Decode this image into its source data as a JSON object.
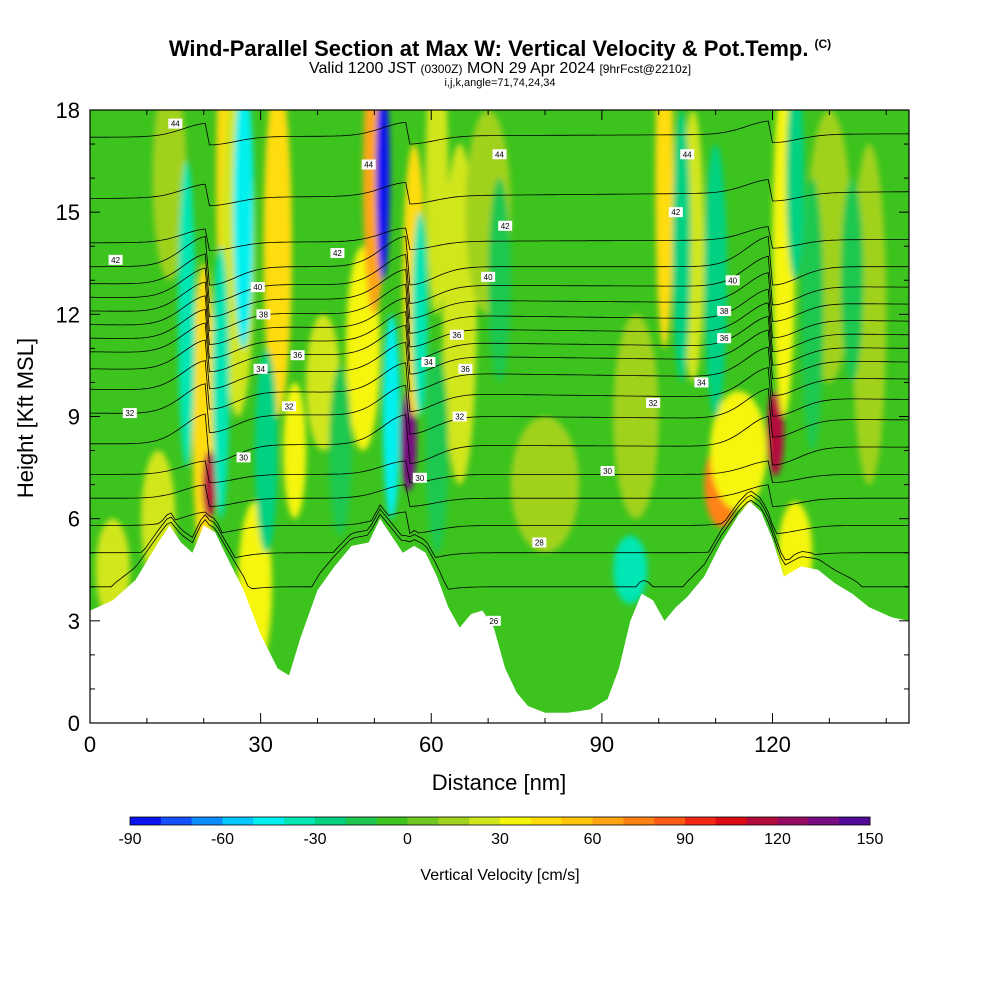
{
  "header": {
    "title": "Wind-Parallel Section at Max W: Vertical Velocity & Pot.Temp.",
    "title_mark": "(C)",
    "subtitle_valid": "Valid 1200 JST",
    "subtitle_utc": "(0300Z)",
    "subtitle_date": "MON 29 Apr 2024",
    "subtitle_fcst": "[9hrFcst@2210z]",
    "params": "i,j,k,angle=71,74,24,34"
  },
  "chart_data": {
    "type": "heatmap",
    "title": "Wind-Parallel Section at Max W: Vertical Velocity & Pot.Temp.",
    "xlabel": "Distance [nm]",
    "ylabel": "Height [Kft MSL]",
    "xlim": [
      0,
      144
    ],
    "ylim": [
      0,
      18
    ],
    "x_ticks": [
      0,
      30,
      60,
      90,
      120
    ],
    "x_tick_labels": [
      "0",
      "30",
      "60",
      "90",
      "120"
    ],
    "y_ticks": [
      0,
      3,
      6,
      9,
      12,
      15,
      18
    ],
    "y_tick_labels": [
      "0",
      "3",
      "6",
      "9",
      "12",
      "15",
      "18"
    ],
    "colorbar": {
      "label": "Vertical Velocity [cm/s]",
      "min": -90,
      "max": 150,
      "step": 10,
      "tick_values": [
        -90,
        -60,
        -30,
        0,
        30,
        60,
        90,
        120,
        150
      ],
      "tick_labels": [
        "-90",
        "-60",
        "-30",
        "0",
        "30",
        "60",
        "90",
        "120",
        "150"
      ],
      "colors": [
        "#0a14f0",
        "#1450ff",
        "#0a8cff",
        "#00c8ff",
        "#00f0f0",
        "#00e6b4",
        "#00d282",
        "#1ec850",
        "#3cc31e",
        "#6ec81e",
        "#a0d21e",
        "#d2e61e",
        "#f5f50a",
        "#ffdc0a",
        "#ffc30a",
        "#ffa514",
        "#ff8214",
        "#ff5a14",
        "#f02814",
        "#dc0a14",
        "#b40a3c",
        "#960a64",
        "#780a82",
        "#500a96"
      ]
    },
    "terrain_kft": [
      [
        0,
        3.3
      ],
      [
        4,
        3.6
      ],
      [
        8,
        4.2
      ],
      [
        12,
        5.3
      ],
      [
        14,
        5.8
      ],
      [
        16,
        5.3
      ],
      [
        18,
        5.0
      ],
      [
        20,
        5.8
      ],
      [
        22,
        5.6
      ],
      [
        24,
        4.9
      ],
      [
        27,
        3.9
      ],
      [
        30,
        2.6
      ],
      [
        33,
        1.6
      ],
      [
        35,
        1.4
      ],
      [
        37,
        2.5
      ],
      [
        40,
        3.9
      ],
      [
        43,
        4.6
      ],
      [
        46,
        5.2
      ],
      [
        49,
        5.3
      ],
      [
        51,
        6.0
      ],
      [
        53,
        5.5
      ],
      [
        55,
        5.0
      ],
      [
        57,
        5.2
      ],
      [
        59,
        5.0
      ],
      [
        61,
        4.3
      ],
      [
        63,
        3.4
      ],
      [
        65,
        2.8
      ],
      [
        67,
        3.2
      ],
      [
        69,
        3.3
      ],
      [
        71,
        2.8
      ],
      [
        73,
        1.6
      ],
      [
        75,
        0.9
      ],
      [
        77,
        0.5
      ],
      [
        80,
        0.3
      ],
      [
        84,
        0.3
      ],
      [
        88,
        0.4
      ],
      [
        91,
        0.7
      ],
      [
        93,
        1.6
      ],
      [
        95,
        3.0
      ],
      [
        97,
        3.8
      ],
      [
        99,
        3.6
      ],
      [
        101,
        3.0
      ],
      [
        103,
        3.4
      ],
      [
        105,
        3.7
      ],
      [
        108,
        4.3
      ],
      [
        111,
        5.3
      ],
      [
        114,
        6.1
      ],
      [
        116,
        6.5
      ],
      [
        118,
        6.2
      ],
      [
        120,
        5.4
      ],
      [
        122,
        4.3
      ],
      [
        125,
        4.6
      ],
      [
        128,
        4.5
      ],
      [
        131,
        4.1
      ],
      [
        134,
        3.8
      ],
      [
        137,
        3.4
      ],
      [
        141,
        3.1
      ],
      [
        144,
        3.0
      ]
    ],
    "updrafts": [
      {
        "x": 4,
        "z": 4.5,
        "w": 3,
        "h": 3,
        "value": 20
      },
      {
        "x": 12,
        "z": 6,
        "w": 3,
        "h": 4,
        "value": 25
      },
      {
        "x": 14,
        "z": 16,
        "w": 3,
        "h": 6,
        "value": 15
      },
      {
        "x": 20,
        "z": 9,
        "w": 2,
        "h": 9,
        "value": 40
      },
      {
        "x": 21,
        "z": 7,
        "w": 1.2,
        "h": 2,
        "value": 110
      },
      {
        "x": 24,
        "z": 16,
        "w": 1.8,
        "h": 10,
        "value": 40
      },
      {
        "x": 26,
        "z": 14,
        "w": 3,
        "h": 10,
        "value": 25
      },
      {
        "x": 29,
        "z": 4,
        "w": 3,
        "h": 5,
        "value": 35
      },
      {
        "x": 33,
        "z": 14,
        "w": 2.5,
        "h": 10,
        "value": 40
      },
      {
        "x": 36,
        "z": 8,
        "w": 2,
        "h": 4,
        "value": 30
      },
      {
        "x": 41,
        "z": 10,
        "w": 3,
        "h": 4,
        "value": 20
      },
      {
        "x": 48,
        "z": 11,
        "w": 3,
        "h": 6,
        "value": 35
      },
      {
        "x": 50,
        "z": 16,
        "w": 2,
        "h": 8,
        "value": 60
      },
      {
        "x": 56,
        "z": 8.3,
        "w": 1.4,
        "h": 3,
        "value": 130
      },
      {
        "x": 57,
        "z": 13,
        "w": 2,
        "h": 8,
        "value": 40
      },
      {
        "x": 61,
        "z": 16,
        "w": 2,
        "h": 8,
        "value": 25
      },
      {
        "x": 65,
        "z": 12,
        "w": 3,
        "h": 10,
        "value": 25
      },
      {
        "x": 70,
        "z": 15,
        "w": 4,
        "h": 6,
        "value": 15
      },
      {
        "x": 80,
        "z": 7,
        "w": 6,
        "h": 4,
        "value": 12
      },
      {
        "x": 96,
        "z": 9,
        "w": 4,
        "h": 6,
        "value": 15
      },
      {
        "x": 101,
        "z": 16,
        "w": 1.6,
        "h": 10,
        "value": 40
      },
      {
        "x": 106,
        "z": 14,
        "w": 2,
        "h": 8,
        "value": 20
      },
      {
        "x": 111,
        "z": 7,
        "w": 3,
        "h": 2.5,
        "value": 70
      },
      {
        "x": 114,
        "z": 8,
        "w": 5,
        "h": 3.5,
        "value": 30
      },
      {
        "x": 120.5,
        "z": 8.5,
        "w": 1.5,
        "h": 2.5,
        "value": 115
      },
      {
        "x": 122,
        "z": 14,
        "w": 2,
        "h": 10,
        "value": 30
      },
      {
        "x": 124,
        "z": 5,
        "w": 3,
        "h": 3,
        "value": 30
      },
      {
        "x": 130,
        "z": 14,
        "w": 4,
        "h": 8,
        "value": 15
      },
      {
        "x": 137,
        "z": 12,
        "w": 3,
        "h": 10,
        "value": 10
      }
    ],
    "downdrafts": [
      {
        "x": 17,
        "z": 12,
        "w": 1.5,
        "h": 9,
        "value": -35
      },
      {
        "x": 23,
        "z": 10,
        "w": 1.5,
        "h": 8,
        "value": -40
      },
      {
        "x": 27,
        "z": 15,
        "w": 1.8,
        "h": 8,
        "value": -45
      },
      {
        "x": 31,
        "z": 8,
        "w": 2,
        "h": 6,
        "value": -25
      },
      {
        "x": 44,
        "z": 8,
        "w": 2,
        "h": 5,
        "value": -20
      },
      {
        "x": 51.5,
        "z": 16,
        "w": 1.2,
        "h": 6,
        "value": -85
      },
      {
        "x": 53,
        "z": 9,
        "w": 1.5,
        "h": 6,
        "value": -45
      },
      {
        "x": 58,
        "z": 12,
        "w": 1.4,
        "h": 6,
        "value": -40
      },
      {
        "x": 61,
        "z": 8,
        "w": 2,
        "h": 6,
        "value": -20
      },
      {
        "x": 72,
        "z": 13,
        "w": 2,
        "h": 6,
        "value": -15
      },
      {
        "x": 95,
        "z": 4.5,
        "w": 3,
        "h": 2,
        "value": -35
      },
      {
        "x": 104,
        "z": 14,
        "w": 1.6,
        "h": 8,
        "value": -30
      },
      {
        "x": 110,
        "z": 13,
        "w": 2,
        "h": 8,
        "value": -25
      },
      {
        "x": 124,
        "z": 16,
        "w": 1.6,
        "h": 6,
        "value": -30
      },
      {
        "x": 127,
        "z": 12,
        "w": 2,
        "h": 8,
        "value": -20
      },
      {
        "x": 134,
        "z": 13,
        "w": 2,
        "h": 6,
        "value": -15
      }
    ],
    "theta_contours": [
      {
        "value": 26,
        "z_left": 4.0,
        "z_right": 4.0
      },
      {
        "value": 27,
        "z_left": 5.0,
        "z_right": 5.0
      },
      {
        "value": 28,
        "z_left": 5.8,
        "z_right": 5.8
      },
      {
        "value": 29,
        "z_left": 6.6,
        "z_right": 6.6
      },
      {
        "value": 30,
        "z_left": 7.3,
        "z_right": 7.3
      },
      {
        "value": 31,
        "z_left": 8.2,
        "z_right": 8.1
      },
      {
        "value": 32,
        "z_left": 9.1,
        "z_right": 8.9
      },
      {
        "value": 33,
        "z_left": 9.8,
        "z_right": 9.5
      },
      {
        "value": 34,
        "z_left": 10.4,
        "z_right": 10.1
      },
      {
        "value": 35,
        "z_left": 10.9,
        "z_right": 10.6
      },
      {
        "value": 36,
        "z_left": 11.3,
        "z_right": 11.0
      },
      {
        "value": 37,
        "z_left": 11.7,
        "z_right": 11.4
      },
      {
        "value": 38,
        "z_left": 12.1,
        "z_right": 11.8
      },
      {
        "value": 39,
        "z_left": 12.5,
        "z_right": 12.3
      },
      {
        "value": 40,
        "z_left": 12.9,
        "z_right": 12.8
      },
      {
        "value": 41,
        "z_left": 13.4,
        "z_right": 13.4
      },
      {
        "value": 42,
        "z_left": 14.1,
        "z_right": 14.2
      },
      {
        "value": 43,
        "z_left": 15.4,
        "z_right": 15.6
      },
      {
        "value": 44,
        "z_left": 17.2,
        "z_right": 17.3
      }
    ],
    "contour_labels": [
      {
        "text": "44",
        "x": 15,
        "z": 17.6
      },
      {
        "text": "44",
        "x": 49,
        "z": 16.4
      },
      {
        "text": "44",
        "x": 72,
        "z": 16.7
      },
      {
        "text": "44",
        "x": 105,
        "z": 16.7
      },
      {
        "text": "42",
        "x": 4.5,
        "z": 13.6
      },
      {
        "text": "42",
        "x": 43.5,
        "z": 13.8
      },
      {
        "text": "42",
        "x": 73,
        "z": 14.6
      },
      {
        "text": "42",
        "x": 103,
        "z": 15.0
      },
      {
        "text": "40",
        "x": 29.5,
        "z": 12.8
      },
      {
        "text": "40",
        "x": 70,
        "z": 13.1
      },
      {
        "text": "40",
        "x": 113,
        "z": 13.0
      },
      {
        "text": "38",
        "x": 30.5,
        "z": 12.0
      },
      {
        "text": "38",
        "x": 111.5,
        "z": 12.1
      },
      {
        "text": "36",
        "x": 36.5,
        "z": 10.8
      },
      {
        "text": "36",
        "x": 64.5,
        "z": 11.4
      },
      {
        "text": "36",
        "x": 66,
        "z": 10.4
      },
      {
        "text": "36",
        "x": 111.5,
        "z": 11.3
      },
      {
        "text": "34",
        "x": 30,
        "z": 10.4
      },
      {
        "text": "34",
        "x": 59.5,
        "z": 10.6
      },
      {
        "text": "34",
        "x": 107.5,
        "z": 10.0
      },
      {
        "text": "32",
        "x": 7,
        "z": 9.1
      },
      {
        "text": "32",
        "x": 35,
        "z": 9.3
      },
      {
        "text": "32",
        "x": 65,
        "z": 9.0
      },
      {
        "text": "32",
        "x": 99,
        "z": 9.4
      },
      {
        "text": "30",
        "x": 27,
        "z": 7.8
      },
      {
        "text": "30",
        "x": 58,
        "z": 7.2
      },
      {
        "text": "30",
        "x": 91,
        "z": 7.4
      },
      {
        "text": "28",
        "x": 79,
        "z": 5.3
      },
      {
        "text": "26",
        "x": 71,
        "z": 3.0
      }
    ]
  }
}
